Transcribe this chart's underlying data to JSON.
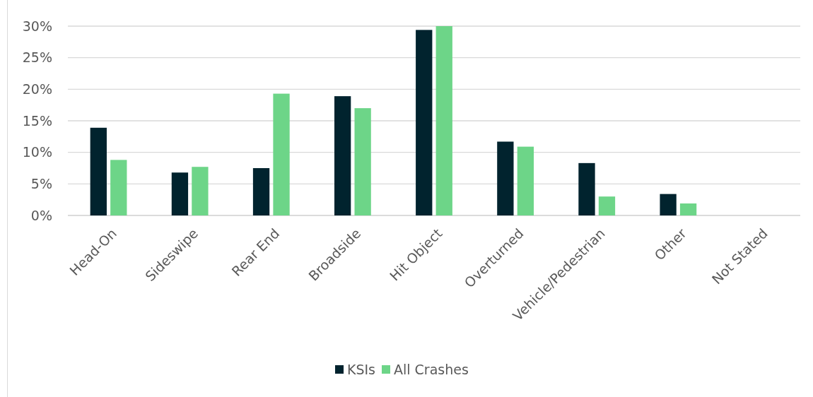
{
  "chart_data": {
    "type": "bar",
    "categories": [
      "Head-On",
      "Sideswipe",
      "Rear End",
      "Broadside",
      "Hit Object",
      "Overturned",
      "Vehicle/Pedestrian",
      "Other",
      "Not Stated"
    ],
    "series": [
      {
        "name": "KSIs",
        "color": "#01232e",
        "values": [
          13.9,
          6.8,
          7.5,
          18.9,
          29.4,
          11.7,
          8.3,
          3.4,
          0
        ]
      },
      {
        "name": "All Crashes",
        "color": "#6dd588",
        "values": [
          8.8,
          7.7,
          19.3,
          17.0,
          30.0,
          10.9,
          3.0,
          1.9,
          0
        ]
      }
    ],
    "ylim": [
      0,
      30
    ],
    "yticks": [
      {
        "value": 0,
        "label": "0%"
      },
      {
        "value": 5,
        "label": "5%"
      },
      {
        "value": 10,
        "label": "10%"
      },
      {
        "value": 15,
        "label": "15%"
      },
      {
        "value": 20,
        "label": "20%"
      },
      {
        "value": 25,
        "label": "25%"
      },
      {
        "value": 30,
        "label": "30%"
      }
    ],
    "grid": "y",
    "legend": "bottom"
  }
}
